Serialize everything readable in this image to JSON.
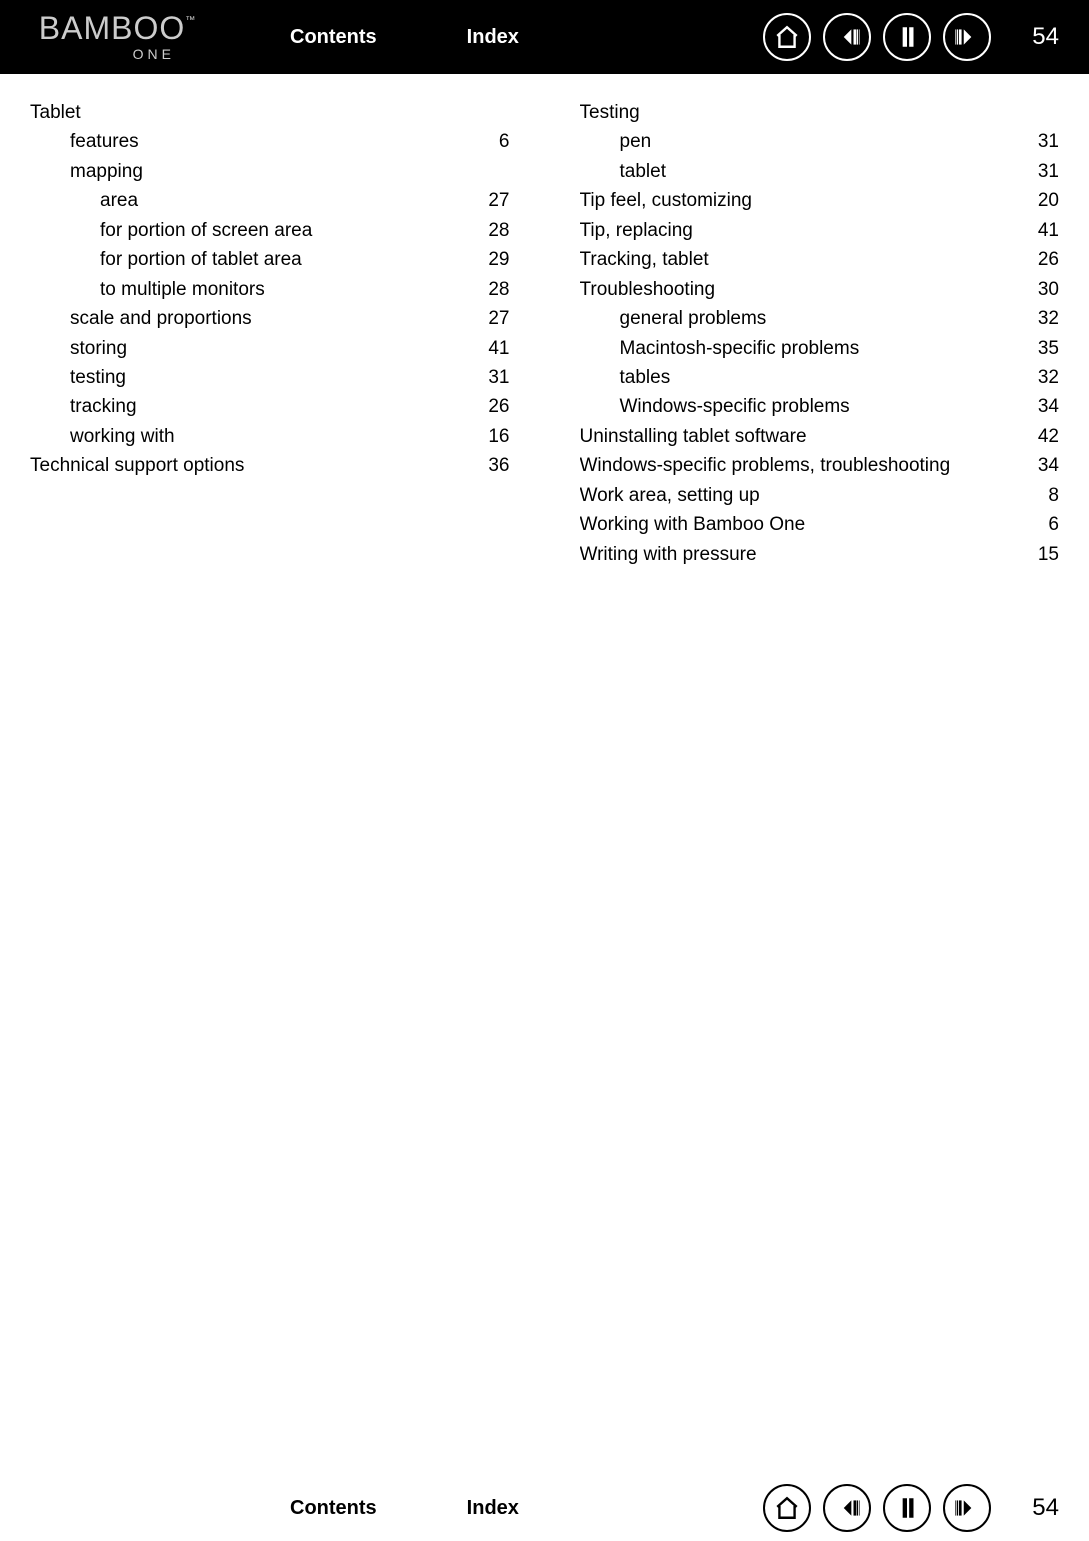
{
  "logo": {
    "main": "BAMBOO",
    "tm": "™",
    "sub": "ONE"
  },
  "nav": {
    "contents": "Contents",
    "index": "Index",
    "page_number": "54"
  },
  "icons": {
    "home": "home-icon",
    "first": "first-page-icon",
    "prev": "prev-page-icon",
    "next": "next-page-icon"
  },
  "columns": {
    "left": [
      {
        "label": "Tablet",
        "page": "",
        "indent": 0
      },
      {
        "label": "features",
        "page": "6",
        "indent": 1
      },
      {
        "label": "mapping",
        "page": "",
        "indent": 1
      },
      {
        "label": "area",
        "page": "27",
        "indent": 2
      },
      {
        "label": "for portion of screen area",
        "page": "28",
        "indent": 2
      },
      {
        "label": "for portion of tablet area",
        "page": "29",
        "indent": 2
      },
      {
        "label": "to multiple monitors",
        "page": "28",
        "indent": 2
      },
      {
        "label": "scale and proportions",
        "page": "27",
        "indent": 1
      },
      {
        "label": "storing",
        "page": "41",
        "indent": 1
      },
      {
        "label": "testing",
        "page": "31",
        "indent": 1
      },
      {
        "label": "tracking",
        "page": "26",
        "indent": 1
      },
      {
        "label": "working with",
        "page": "16",
        "indent": 1
      },
      {
        "label": "Technical support options",
        "page": "36",
        "indent": 0
      }
    ],
    "right": [
      {
        "label": "Testing",
        "page": "",
        "indent": 0
      },
      {
        "label": "pen",
        "page": "31",
        "indent": 1
      },
      {
        "label": "tablet",
        "page": "31",
        "indent": 1
      },
      {
        "label": "Tip feel, customizing",
        "page": "20",
        "indent": 0
      },
      {
        "label": "Tip, replacing",
        "page": "41",
        "indent": 0
      },
      {
        "label": "Tracking, tablet",
        "page": "26",
        "indent": 0
      },
      {
        "label": "Troubleshooting",
        "page": "30",
        "indent": 0
      },
      {
        "label": "general problems",
        "page": "32",
        "indent": 1
      },
      {
        "label": "Macintosh-specific problems",
        "page": "35",
        "indent": 1
      },
      {
        "label": "tables",
        "page": "32",
        "indent": 1
      },
      {
        "label": "Windows-specific problems",
        "page": "34",
        "indent": 1
      },
      {
        "label": "Uninstalling tablet software",
        "page": "42",
        "indent": 0
      },
      {
        "label": "Windows-specific problems, troubleshooting",
        "page": "34",
        "indent": 0
      },
      {
        "label": "Work area, setting up",
        "page": "8",
        "indent": 0
      },
      {
        "label": "Working with Bamboo One",
        "page": "6",
        "indent": 0
      },
      {
        "label": "Writing with pressure",
        "page": "15",
        "indent": 0
      }
    ]
  }
}
